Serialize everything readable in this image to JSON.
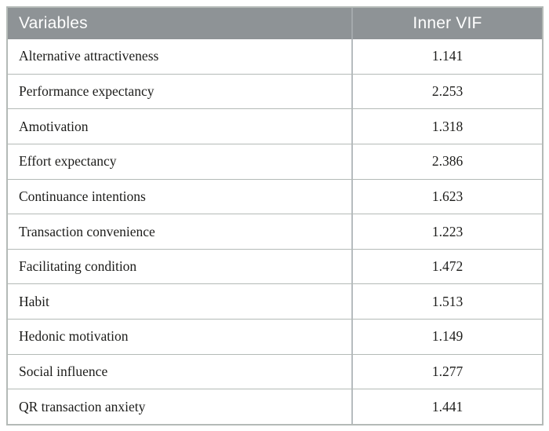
{
  "table": {
    "columns": [
      {
        "label": "Variables"
      },
      {
        "label": "Inner VIF"
      }
    ],
    "rows": [
      {
        "variable": "Alternative attractiveness",
        "vif": "1.141"
      },
      {
        "variable": "Performance expectancy",
        "vif": "2.253"
      },
      {
        "variable": "Amotivation",
        "vif": "1.318"
      },
      {
        "variable": "Effort expectancy",
        "vif": "2.386"
      },
      {
        "variable": "Continuance intentions",
        "vif": "1.623"
      },
      {
        "variable": "Transaction convenience",
        "vif": "1.223"
      },
      {
        "variable": "Facilitating condition",
        "vif": "1.472"
      },
      {
        "variable": "Habit",
        "vif": "1.513"
      },
      {
        "variable": "Hedonic motivation",
        "vif": "1.149"
      },
      {
        "variable": "Social influence",
        "vif": "1.277"
      },
      {
        "variable": "QR transaction anxiety",
        "vif": "1.441"
      }
    ]
  },
  "colors": {
    "header_background": "#8e9396",
    "header_text": "#ffffff",
    "border": "#b4bab7",
    "body_text": "#1d1d1b"
  },
  "chart_data": {
    "type": "table",
    "title": "",
    "categories": [
      "Alternative attractiveness",
      "Performance expectancy",
      "Amotivation",
      "Effort expectancy",
      "Continuance intentions",
      "Transaction convenience",
      "Facilitating condition",
      "Habit",
      "Hedonic motivation",
      "Social influence",
      "QR transaction anxiety"
    ],
    "series": [
      {
        "name": "Inner VIF",
        "values": [
          1.141,
          2.253,
          1.318,
          2.386,
          1.623,
          1.223,
          1.472,
          1.513,
          1.149,
          1.277,
          1.441
        ]
      }
    ]
  }
}
